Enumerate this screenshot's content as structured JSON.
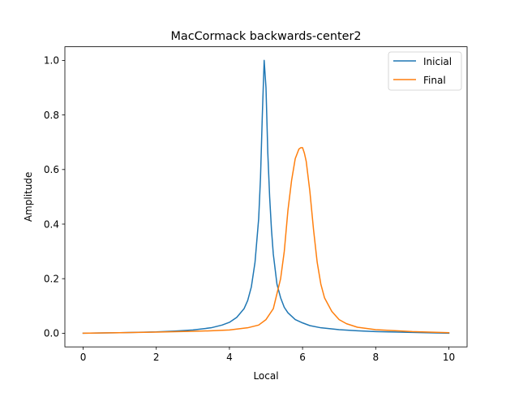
{
  "figure": {
    "title": "MacCormack backwards-center2"
  },
  "chart_data": {
    "type": "line",
    "title": "MacCormack backwards-center2",
    "xlabel": "Local",
    "ylabel": "Amplitude",
    "xlim": [
      -0.5,
      10.5
    ],
    "ylim": [
      -0.05,
      1.05
    ],
    "xticks": [
      0,
      2,
      4,
      6,
      8,
      10
    ],
    "xtick_labels": [
      "0",
      "2",
      "4",
      "6",
      "8",
      "10"
    ],
    "yticks": [
      0.0,
      0.2,
      0.4,
      0.6,
      0.8,
      1.0
    ],
    "ytick_labels": [
      "0.0",
      "0.2",
      "0.4",
      "0.6",
      "0.8",
      "1.0"
    ],
    "grid": false,
    "legend_position": "top-right",
    "series": [
      {
        "name": "Inicial",
        "color": "#1f77b4",
        "x": [
          0.0,
          1.0,
          2.0,
          2.5,
          3.0,
          3.5,
          3.8,
          4.0,
          4.2,
          4.4,
          4.5,
          4.6,
          4.7,
          4.8,
          4.85,
          4.9,
          4.95,
          5.0,
          5.05,
          5.1,
          5.15,
          5.2,
          5.3,
          5.4,
          5.5,
          5.6,
          5.8,
          6.0,
          6.2,
          6.5,
          7.0,
          7.5,
          8.0,
          9.0,
          10.0
        ],
        "y": [
          0.0,
          0.002,
          0.005,
          0.008,
          0.012,
          0.02,
          0.03,
          0.04,
          0.058,
          0.09,
          0.12,
          0.17,
          0.26,
          0.42,
          0.57,
          0.8,
          1.0,
          0.9,
          0.66,
          0.5,
          0.38,
          0.29,
          0.18,
          0.13,
          0.095,
          0.075,
          0.05,
          0.038,
          0.028,
          0.02,
          0.013,
          0.009,
          0.006,
          0.003,
          0.0
        ]
      },
      {
        "name": "Final",
        "color": "#ff7f0e",
        "x": [
          0.0,
          1.0,
          2.0,
          3.0,
          3.5,
          4.0,
          4.5,
          4.8,
          5.0,
          5.2,
          5.4,
          5.5,
          5.6,
          5.7,
          5.8,
          5.9,
          5.95,
          6.0,
          6.05,
          6.1,
          6.2,
          6.3,
          6.4,
          6.5,
          6.6,
          6.8,
          7.0,
          7.2,
          7.5,
          8.0,
          9.0,
          10.0
        ],
        "y": [
          0.0,
          0.002,
          0.004,
          0.007,
          0.009,
          0.012,
          0.02,
          0.03,
          0.05,
          0.09,
          0.2,
          0.3,
          0.45,
          0.56,
          0.64,
          0.675,
          0.68,
          0.68,
          0.66,
          0.63,
          0.52,
          0.38,
          0.26,
          0.18,
          0.13,
          0.08,
          0.05,
          0.035,
          0.022,
          0.013,
          0.006,
          0.002
        ]
      }
    ]
  }
}
